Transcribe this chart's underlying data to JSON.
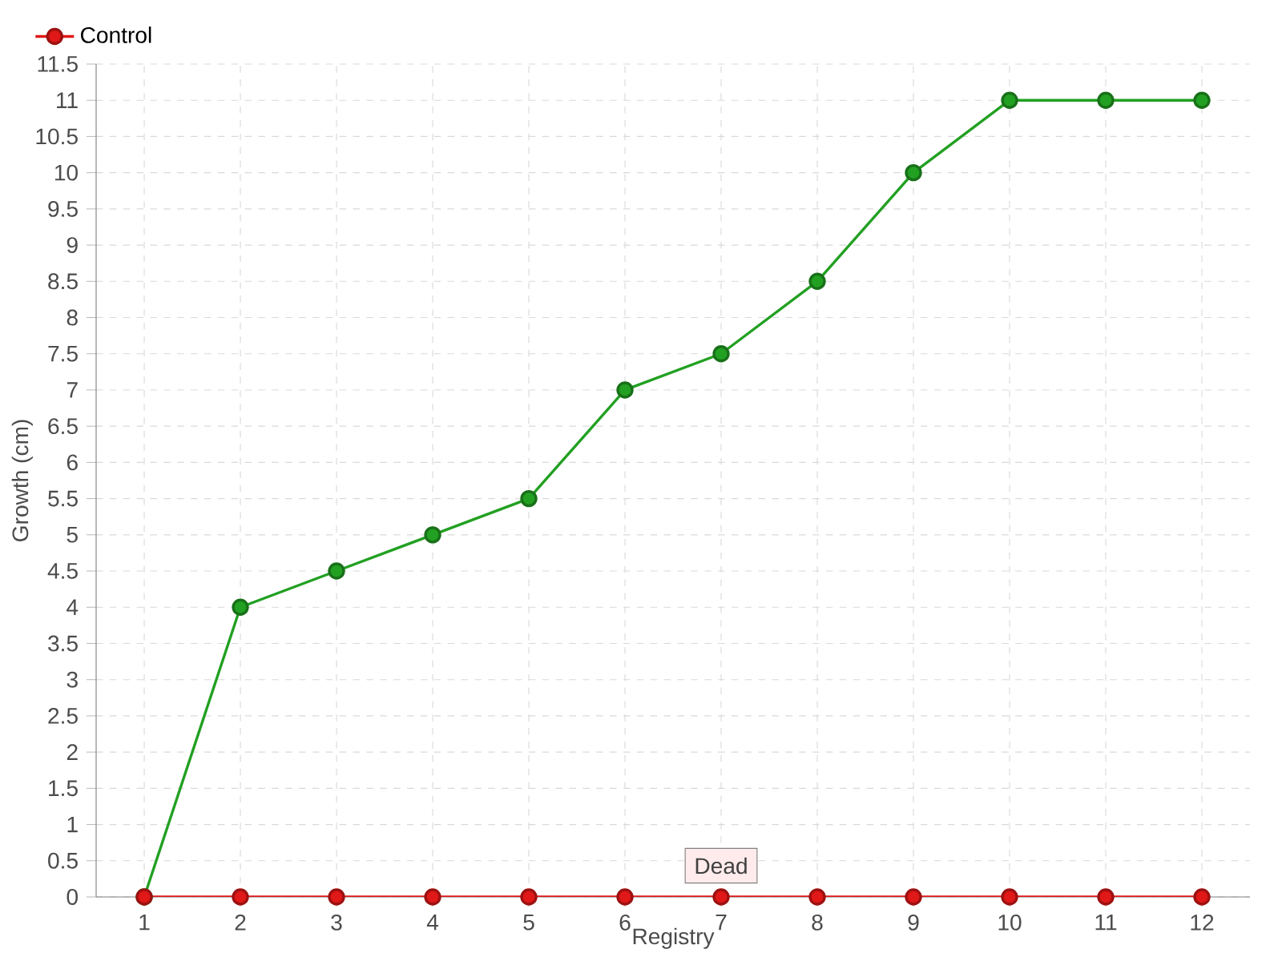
{
  "chart_data": {
    "type": "line",
    "xlabel": "Registry",
    "ylabel": "Growth (cm)",
    "categories": [
      "1",
      "2",
      "3",
      "4",
      "5",
      "6",
      "7",
      "8",
      "9",
      "10",
      "11",
      "12"
    ],
    "series": [
      {
        "color": "#22a022",
        "values": [
          0,
          4,
          4.5,
          5,
          5.5,
          7,
          7.5,
          8.5,
          10,
          11,
          11,
          11
        ]
      },
      {
        "name": "Control",
        "color": "#e01818",
        "values": [
          0,
          0,
          0,
          0,
          0,
          0,
          0,
          0,
          0,
          0,
          0,
          0
        ]
      }
    ],
    "ylim": [
      0,
      11.5
    ],
    "yticks": [
      0,
      0.5,
      1,
      1.5,
      2,
      2.5,
      3,
      3.5,
      4,
      4.5,
      5,
      5.5,
      6,
      6.5,
      7,
      7.5,
      8,
      8.5,
      9,
      9.5,
      10,
      10.5,
      11,
      11.5
    ],
    "grid": true,
    "legend": "top left",
    "marker": "circle",
    "line_style": "solid",
    "annotations": [
      {
        "text": "Dead",
        "x": "7",
        "y": 0
      }
    ]
  }
}
